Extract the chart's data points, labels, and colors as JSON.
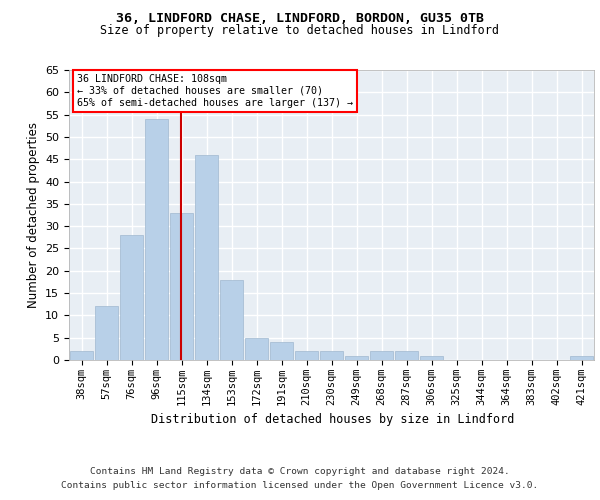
{
  "title1": "36, LINDFORD CHASE, LINDFORD, BORDON, GU35 0TB",
  "title2": "Size of property relative to detached houses in Lindford",
  "xlabel": "Distribution of detached houses by size in Lindford",
  "ylabel": "Number of detached properties",
  "categories": [
    "38sqm",
    "57sqm",
    "76sqm",
    "96sqm",
    "115sqm",
    "134sqm",
    "153sqm",
    "172sqm",
    "191sqm",
    "210sqm",
    "230sqm",
    "249sqm",
    "268sqm",
    "287sqm",
    "306sqm",
    "325sqm",
    "344sqm",
    "364sqm",
    "383sqm",
    "402sqm",
    "421sqm"
  ],
  "values": [
    2,
    12,
    28,
    54,
    33,
    46,
    18,
    5,
    4,
    2,
    2,
    1,
    2,
    2,
    1,
    0,
    0,
    0,
    0,
    0,
    1
  ],
  "bar_color": "#b8d0e8",
  "bar_edge_color": "#a0b8d0",
  "bg_color": "#e8eef4",
  "grid_color": "#ffffff",
  "vline_x": 3.97,
  "vline_color": "#cc0000",
  "annotation_text1": "36 LINDFORD CHASE: 108sqm",
  "annotation_text2": "← 33% of detached houses are smaller (70)",
  "annotation_text3": "65% of semi-detached houses are larger (137) →",
  "footer1": "Contains HM Land Registry data © Crown copyright and database right 2024.",
  "footer2": "Contains public sector information licensed under the Open Government Licence v3.0.",
  "ylim": [
    0,
    65
  ],
  "yticks": [
    0,
    5,
    10,
    15,
    20,
    25,
    30,
    35,
    40,
    45,
    50,
    55,
    60,
    65
  ]
}
